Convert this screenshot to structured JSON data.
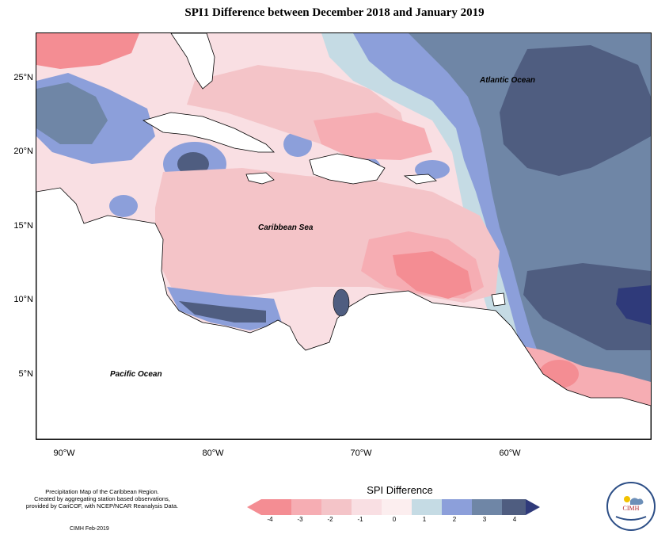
{
  "title": "SPI1 Difference between December 2018 and January 2019",
  "map": {
    "ocean_labels": {
      "atlantic": "Atlantic Ocean",
      "caribbean": "Caribbean Sea",
      "pacific": "Pacific Ocean"
    },
    "lat_ticks": [
      "25°N",
      "20°N",
      "15°N",
      "10°N",
      "5°N"
    ],
    "lon_ticks": [
      "90°W",
      "80°W",
      "70°W",
      "60°W"
    ]
  },
  "legend": {
    "title": "SPI Difference",
    "ticks": [
      "-4",
      "-3",
      "-2",
      "-1",
      "0",
      "1",
      "2",
      "3",
      "4"
    ],
    "colors": [
      "#f48d93",
      "#f6adb3",
      "#f4c4c8",
      "#f9dfe3",
      "#fceeef",
      "#c5dbe4",
      "#8c9fda",
      "#6f86a6",
      "#4f5d80"
    ]
  },
  "footer": {
    "line1": "Precipitation Map of the Caribbean Region.",
    "line2": "Created by aggregating station based observations,",
    "line3": "provided by CariCOF, with NCEP/NCAR Reanalysis Data.",
    "date": "CIMH Feb-2019"
  },
  "logo": {
    "text": "CIMH"
  }
}
